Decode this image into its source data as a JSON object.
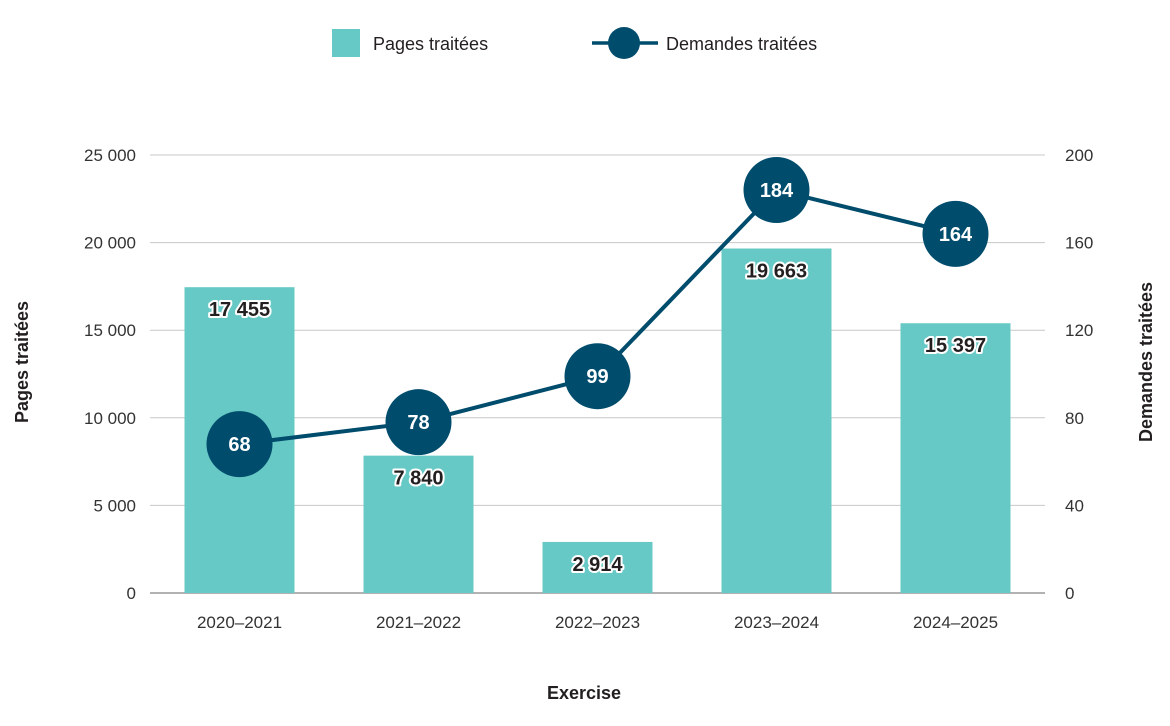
{
  "chart_data": {
    "type": "bar",
    "categories": [
      "2020–2021",
      "2021–2022",
      "2022–2023",
      "2023–2024",
      "2024–2025"
    ],
    "series": [
      {
        "name": "Pages traitées",
        "type": "bar",
        "axis": "left",
        "values": [
          17455,
          7840,
          2914,
          19663,
          15397
        ],
        "labels": [
          "17 455",
          "7 840",
          "2 914",
          "19 663",
          "15 397"
        ],
        "color": "#67c9c6"
      },
      {
        "name": "Demandes traitées",
        "type": "line",
        "axis": "right",
        "values": [
          68,
          78,
          99,
          184,
          164
        ],
        "labels": [
          "68",
          "78",
          "99",
          "184",
          "164"
        ],
        "color": "#004c6c"
      }
    ],
    "xlabel": "Exercise",
    "ylabel": "Pages traitées",
    "y2label": "Demandes traitées",
    "ylim": [
      0,
      25000
    ],
    "y2lim": [
      0,
      200
    ],
    "yticks": [
      0,
      5000,
      10000,
      15000,
      20000,
      25000
    ],
    "yticklabels": [
      "0",
      "5 000",
      "10 000",
      "15 000",
      "20 000",
      "25 000"
    ],
    "y2ticks": [
      0,
      40,
      80,
      120,
      160,
      200
    ],
    "y2ticklabels": [
      "0",
      "40",
      "80",
      "120",
      "160",
      "200"
    ],
    "grid": true,
    "legend_position": "top-center"
  }
}
